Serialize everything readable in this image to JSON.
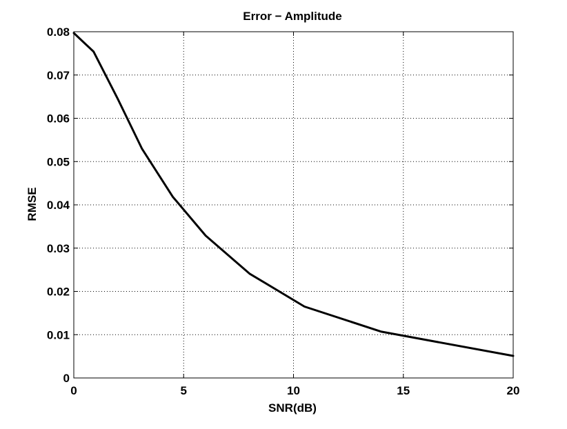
{
  "chart_data": {
    "type": "line",
    "title": "Error − Amplitude",
    "xlabel": "SNR(dB)",
    "ylabel": "RMSE",
    "xlim": [
      0,
      20
    ],
    "ylim": [
      0,
      0.08
    ],
    "x_ticks": [
      0,
      5,
      10,
      15,
      20
    ],
    "x_tick_labels": [
      "0",
      "5",
      "10",
      "15",
      "20"
    ],
    "y_ticks": [
      0,
      0.01,
      0.02,
      0.03,
      0.04,
      0.05,
      0.06,
      0.07,
      0.08
    ],
    "y_tick_labels": [
      "0",
      "0.01",
      "0.02",
      "0.03",
      "0.04",
      "0.05",
      "0.06",
      "0.07",
      "0.08"
    ],
    "grid": true,
    "legend": false,
    "series": [
      {
        "color": "#000000",
        "x": [
          0,
          0.9,
          2,
          3.1,
          4.5,
          6,
          8,
          10.5,
          14,
          20
        ],
        "y": [
          0.0797,
          0.0754,
          0.0645,
          0.053,
          0.0419,
          0.0329,
          0.0241,
          0.0165,
          0.0107,
          0.0051
        ]
      }
    ]
  }
}
